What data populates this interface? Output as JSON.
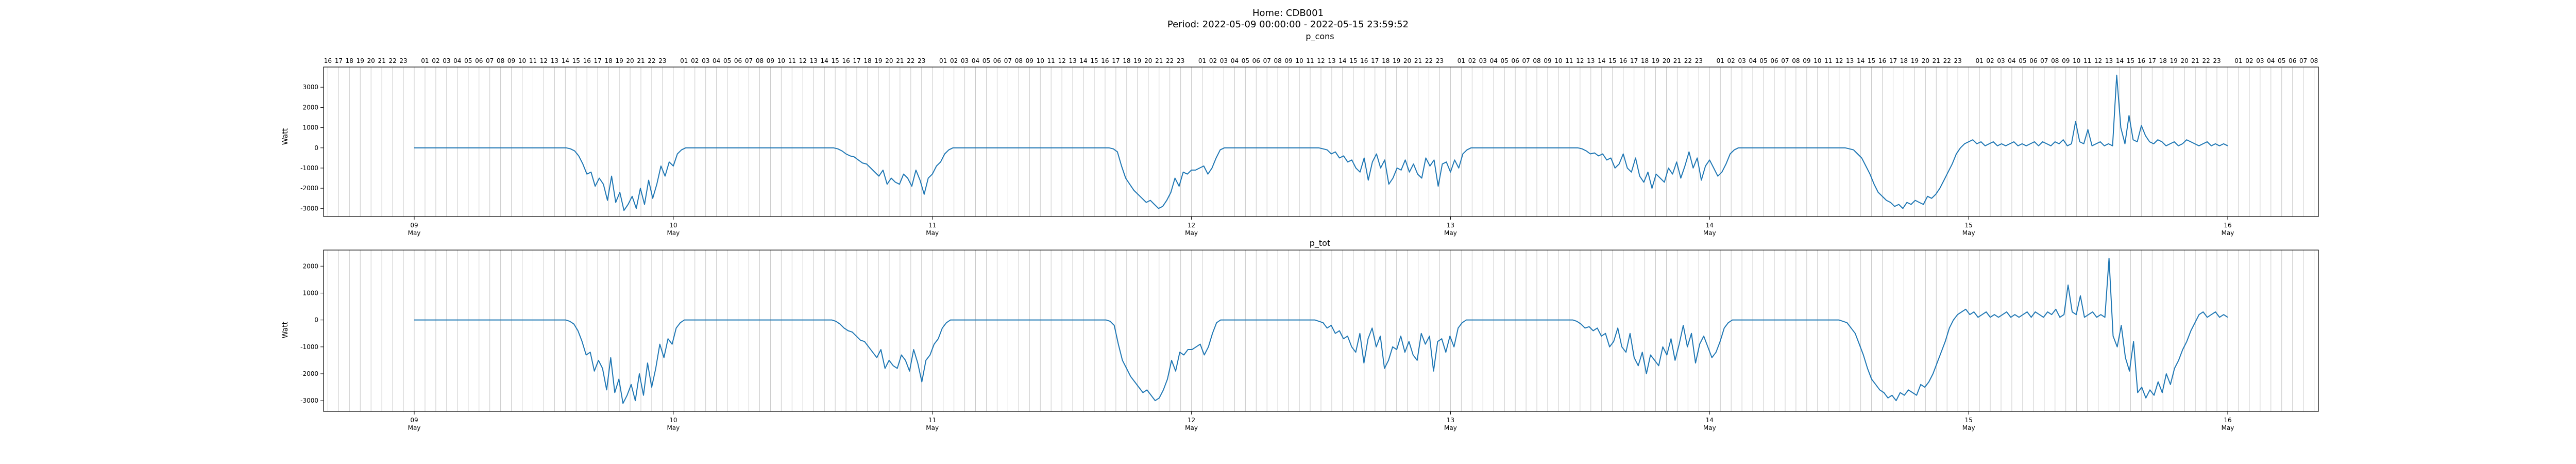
{
  "figure": {
    "title_line1": "Home: CDB001",
    "title_line2": "Period: 2022-05-09 00:00:00 - 2022-05-15 23:59:52"
  },
  "chart_data": [
    {
      "type": "line",
      "title": "p_cons",
      "ylabel": "Watt",
      "ylim": [
        -3400,
        4000
      ],
      "yticks": [
        -3000,
        -2000,
        -1000,
        0,
        1000,
        2000,
        3000
      ],
      "xlim_days": [
        -0.35,
        7.35
      ],
      "xticks": [
        {
          "day": 0,
          "label": "09"
        },
        {
          "day": 1,
          "label": "10"
        },
        {
          "day": 2,
          "label": "11"
        },
        {
          "day": 3,
          "label": "12"
        },
        {
          "day": 4,
          "label": "13"
        },
        {
          "day": 5,
          "label": "14"
        },
        {
          "day": 6,
          "label": "15"
        },
        {
          "day": 7,
          "label": "16"
        }
      ],
      "month_label": "May",
      "top_hour_axis": "00-23 hourly gridlines, labels for each hour",
      "line_color": "#1f77b4",
      "series": [
        {
          "values": [
            0,
            0,
            0,
            0,
            0,
            0,
            0,
            0,
            0,
            0,
            0,
            0,
            0,
            0,
            0,
            0,
            0,
            0,
            0,
            0,
            0,
            0,
            0,
            0,
            0,
            0,
            0,
            0,
            0,
            0,
            0,
            0,
            0,
            0,
            0,
            0,
            0,
            0,
            -50,
            -150,
            -400,
            -800,
            -1300,
            -1200,
            -1900,
            -1500,
            -1800,
            -2600,
            -1400,
            -2700,
            -2200,
            -3100,
            -2800,
            -2400,
            -3000,
            -2000,
            -2800,
            -1600,
            -2500,
            -1800,
            -900,
            -1400,
            -700,
            -900,
            -300,
            -100,
            0,
            0,
            0,
            0,
            0,
            0,
            0,
            0,
            0,
            0,
            0,
            0,
            0,
            0,
            0,
            0,
            0,
            0,
            0,
            0,
            0,
            0,
            0,
            0,
            0,
            0,
            0,
            0,
            0,
            0,
            0,
            0,
            0,
            0,
            0,
            0,
            0,
            -50,
            -150,
            -300,
            -400,
            -450,
            -600,
            -750,
            -800,
            -1000,
            -1200,
            -1400,
            -1100,
            -1800,
            -1500,
            -1700,
            -1800,
            -1300,
            -1500,
            -1900,
            -1100,
            -1600,
            -2300,
            -1500,
            -1300,
            -900,
            -700,
            -300,
            -100,
            0,
            0,
            0,
            0,
            0,
            0,
            0,
            0,
            0,
            0,
            0,
            0,
            0,
            0,
            0,
            0,
            0,
            0,
            0,
            0,
            0,
            0,
            0,
            0,
            0,
            0,
            0,
            0,
            0,
            0,
            0,
            0,
            0,
            0,
            0,
            0,
            0,
            0,
            0,
            -50,
            -200,
            -900,
            -1500,
            -1800,
            -2100,
            -2300,
            -2500,
            -2700,
            -2600,
            -2800,
            -3000,
            -2900,
            -2600,
            -2200,
            -1500,
            -1900,
            -1200,
            -1300,
            -1100,
            -1100,
            -1000,
            -900,
            -1300,
            -1000,
            -500,
            -100,
            0,
            0,
            0,
            0,
            0,
            0,
            0,
            0,
            0,
            0,
            0,
            0,
            0,
            0,
            0,
            0,
            0,
            0,
            0,
            0,
            0,
            0,
            0,
            0,
            -50,
            -100,
            -300,
            -200,
            -500,
            -400,
            -700,
            -600,
            -1000,
            -1200,
            -500,
            -1600,
            -700,
            -300,
            -1000,
            -600,
            -1800,
            -1500,
            -1000,
            -1100,
            -600,
            -1200,
            -800,
            -1300,
            -1500,
            -500,
            -900,
            -600,
            -1900,
            -800,
            -700,
            -1200,
            -600,
            -1000,
            -300,
            -100,
            0,
            0,
            0,
            0,
            0,
            0,
            0,
            0,
            0,
            0,
            0,
            0,
            0,
            0,
            0,
            0,
            0,
            0,
            0,
            0,
            0,
            0,
            0,
            0,
            0,
            0,
            0,
            -50,
            -150,
            -300,
            -250,
            -400,
            -300,
            -600,
            -500,
            -1000,
            -800,
            -300,
            -1000,
            -1200,
            -500,
            -1400,
            -1700,
            -1200,
            -2000,
            -1300,
            -1500,
            -1700,
            -1000,
            -1300,
            -700,
            -1500,
            -900,
            -200,
            -1000,
            -500,
            -1600,
            -900,
            -600,
            -1000,
            -1400,
            -1200,
            -800,
            -300,
            -100,
            0,
            0,
            0,
            0,
            0,
            0,
            0,
            0,
            0,
            0,
            0,
            0,
            0,
            0,
            0,
            0,
            0,
            0,
            0,
            0,
            0,
            0,
            0,
            0,
            0,
            0,
            0,
            -50,
            -100,
            -300,
            -500,
            -900,
            -1300,
            -1800,
            -2200,
            -2400,
            -2600,
            -2700,
            -2900,
            -2800,
            -3000,
            -2700,
            -2800,
            -2600,
            -2700,
            -2800,
            -2400,
            -2500,
            -2300,
            -2000,
            -1600,
            -1200,
            -800,
            -300,
            0,
            200,
            300,
            400,
            200,
            300,
            100,
            200,
            300,
            100,
            200,
            100,
            200,
            300,
            100,
            200,
            100,
            200,
            300,
            100,
            300,
            200,
            100,
            300,
            200,
            400,
            100,
            200,
            1300,
            300,
            200,
            900,
            100,
            200,
            300,
            100,
            200,
            100,
            3600,
            1000,
            200,
            1600,
            400,
            300,
            1100,
            600,
            300,
            200,
            400,
            300,
            100,
            200,
            300,
            100,
            200,
            400,
            300,
            200,
            100,
            200,
            300,
            100,
            200,
            100,
            200,
            100
          ]
        }
      ]
    },
    {
      "type": "line",
      "title": "p_tot",
      "ylabel": "Watt",
      "ylim": [
        -3400,
        2600
      ],
      "yticks": [
        -3000,
        -2000,
        -1000,
        0,
        1000,
        2000
      ],
      "xlim_days": [
        -0.35,
        7.35
      ],
      "xticks": [
        {
          "day": 0,
          "label": "09"
        },
        {
          "day": 1,
          "label": "10"
        },
        {
          "day": 2,
          "label": "11"
        },
        {
          "day": 3,
          "label": "12"
        },
        {
          "day": 4,
          "label": "13"
        },
        {
          "day": 5,
          "label": "14"
        },
        {
          "day": 6,
          "label": "15"
        },
        {
          "day": 7,
          "label": "16"
        }
      ],
      "month_label": "May",
      "line_color": "#1f77b4",
      "series": [
        {
          "values": [
            0,
            0,
            0,
            0,
            0,
            0,
            0,
            0,
            0,
            0,
            0,
            0,
            0,
            0,
            0,
            0,
            0,
            0,
            0,
            0,
            0,
            0,
            0,
            0,
            0,
            0,
            0,
            0,
            0,
            0,
            0,
            0,
            0,
            0,
            0,
            0,
            0,
            0,
            -50,
            -150,
            -400,
            -800,
            -1300,
            -1200,
            -1900,
            -1500,
            -1800,
            -2600,
            -1400,
            -2700,
            -2200,
            -3100,
            -2800,
            -2400,
            -3000,
            -2000,
            -2800,
            -1600,
            -2500,
            -1800,
            -900,
            -1400,
            -700,
            -900,
            -300,
            -100,
            0,
            0,
            0,
            0,
            0,
            0,
            0,
            0,
            0,
            0,
            0,
            0,
            0,
            0,
            0,
            0,
            0,
            0,
            0,
            0,
            0,
            0,
            0,
            0,
            0,
            0,
            0,
            0,
            0,
            0,
            0,
            0,
            0,
            0,
            0,
            0,
            0,
            -50,
            -150,
            -300,
            -400,
            -450,
            -600,
            -750,
            -800,
            -1000,
            -1200,
            -1400,
            -1100,
            -1800,
            -1500,
            -1700,
            -1800,
            -1300,
            -1500,
            -1900,
            -1100,
            -1600,
            -2300,
            -1500,
            -1300,
            -900,
            -700,
            -300,
            -100,
            0,
            0,
            0,
            0,
            0,
            0,
            0,
            0,
            0,
            0,
            0,
            0,
            0,
            0,
            0,
            0,
            0,
            0,
            0,
            0,
            0,
            0,
            0,
            0,
            0,
            0,
            0,
            0,
            0,
            0,
            0,
            0,
            0,
            0,
            0,
            0,
            0,
            0,
            0,
            -50,
            -200,
            -900,
            -1500,
            -1800,
            -2100,
            -2300,
            -2500,
            -2700,
            -2600,
            -2800,
            -3000,
            -2900,
            -2600,
            -2200,
            -1500,
            -1900,
            -1200,
            -1300,
            -1100,
            -1100,
            -1000,
            -900,
            -1300,
            -1000,
            -500,
            -100,
            0,
            0,
            0,
            0,
            0,
            0,
            0,
            0,
            0,
            0,
            0,
            0,
            0,
            0,
            0,
            0,
            0,
            0,
            0,
            0,
            0,
            0,
            0,
            0,
            -50,
            -100,
            -300,
            -200,
            -500,
            -400,
            -700,
            -600,
            -1000,
            -1200,
            -500,
            -1600,
            -700,
            -300,
            -1000,
            -600,
            -1800,
            -1500,
            -1000,
            -1100,
            -600,
            -1200,
            -800,
            -1300,
            -1500,
            -500,
            -900,
            -600,
            -1900,
            -800,
            -700,
            -1200,
            -600,
            -1000,
            -300,
            -100,
            0,
            0,
            0,
            0,
            0,
            0,
            0,
            0,
            0,
            0,
            0,
            0,
            0,
            0,
            0,
            0,
            0,
            0,
            0,
            0,
            0,
            0,
            0,
            0,
            0,
            0,
            0,
            -50,
            -150,
            -300,
            -250,
            -400,
            -300,
            -600,
            -500,
            -1000,
            -800,
            -300,
            -1000,
            -1200,
            -500,
            -1400,
            -1700,
            -1200,
            -2000,
            -1300,
            -1500,
            -1700,
            -1000,
            -1300,
            -700,
            -1500,
            -900,
            -200,
            -1000,
            -500,
            -1600,
            -900,
            -600,
            -1000,
            -1400,
            -1200,
            -800,
            -300,
            -100,
            0,
            0,
            0,
            0,
            0,
            0,
            0,
            0,
            0,
            0,
            0,
            0,
            0,
            0,
            0,
            0,
            0,
            0,
            0,
            0,
            0,
            0,
            0,
            0,
            0,
            0,
            0,
            -50,
            -100,
            -300,
            -500,
            -900,
            -1300,
            -1800,
            -2200,
            -2400,
            -2600,
            -2700,
            -2900,
            -2800,
            -3000,
            -2700,
            -2800,
            -2600,
            -2700,
            -2800,
            -2400,
            -2500,
            -2300,
            -2000,
            -1600,
            -1200,
            -800,
            -300,
            0,
            200,
            300,
            400,
            200,
            300,
            100,
            200,
            300,
            100,
            200,
            100,
            200,
            300,
            100,
            200,
            100,
            200,
            300,
            100,
            300,
            200,
            100,
            300,
            200,
            400,
            100,
            200,
            1300,
            300,
            200,
            900,
            100,
            200,
            300,
            100,
            200,
            100,
            2300,
            -600,
            -1000,
            -200,
            -1400,
            -1900,
            -800,
            -2700,
            -2500,
            -2900,
            -2600,
            -2800,
            -2300,
            -2700,
            -2000,
            -2400,
            -1800,
            -1500,
            -1100,
            -800,
            -400,
            -100,
            200,
            300,
            100,
            200,
            300,
            100,
            200,
            100
          ]
        }
      ]
    }
  ]
}
